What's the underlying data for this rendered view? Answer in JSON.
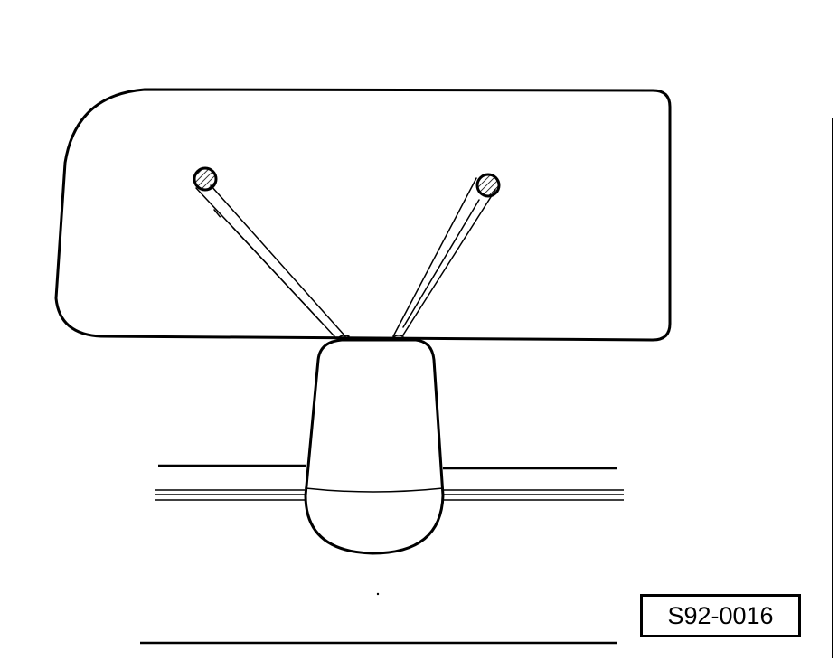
{
  "figure": {
    "code": "S92-0016"
  }
}
